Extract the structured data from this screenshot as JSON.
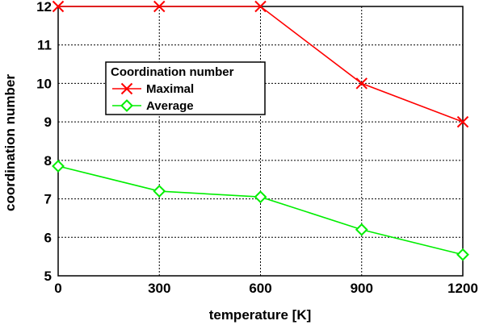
{
  "chart_data": {
    "type": "line",
    "title": "",
    "xlabel": "temperature [K]",
    "ylabel": "coordination number",
    "xlim": [
      0,
      1200
    ],
    "ylim": [
      5,
      12
    ],
    "x_ticks": [
      "0",
      "300",
      "600",
      "900",
      "1200"
    ],
    "y_ticks": [
      "5",
      "6",
      "7",
      "8",
      "9",
      "10",
      "11",
      "12"
    ],
    "grid": true,
    "legend": {
      "title": "Coordination number",
      "placement": "upper-left"
    },
    "series": [
      {
        "name": "Maximal",
        "color": "#ff0000",
        "marker": "x",
        "x": [
          0,
          300,
          600,
          900,
          1200
        ],
        "y": [
          12,
          12,
          12,
          10,
          9
        ]
      },
      {
        "name": "Average",
        "color": "#00ee00",
        "marker": "diamond",
        "x": [
          0,
          300,
          600,
          900,
          1200
        ],
        "y": [
          7.85,
          7.2,
          7.05,
          6.2,
          5.55
        ]
      }
    ]
  }
}
